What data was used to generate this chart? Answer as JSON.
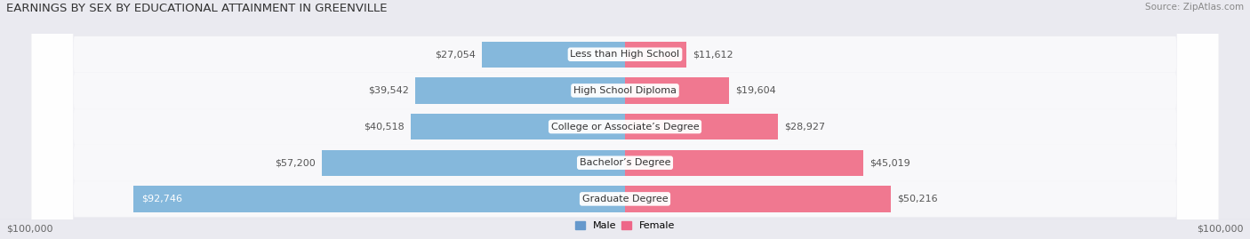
{
  "title": "EARNINGS BY SEX BY EDUCATIONAL ATTAINMENT IN GREENVILLE",
  "source": "Source: ZipAtlas.com",
  "categories": [
    "Less than High School",
    "High School Diploma",
    "College or Associate’s Degree",
    "Bachelor’s Degree",
    "Graduate Degree"
  ],
  "male_values": [
    27054,
    39542,
    40518,
    57200,
    92746
  ],
  "female_values": [
    11612,
    19604,
    28927,
    45019,
    50216
  ],
  "male_labels": [
    "$27,054",
    "$39,542",
    "$40,518",
    "$57,200",
    "$92,746"
  ],
  "female_labels": [
    "$11,612",
    "$19,604",
    "$28,927",
    "$45,019",
    "$50,216"
  ],
  "male_color": "#85b8dc",
  "female_color": "#f07890",
  "axis_max": 100000,
  "background_color": "#eaeaf0",
  "row_bg_light": "#f5f5f8",
  "row_bg_dark": "#e0e0ea",
  "label_fontsize": 8.0,
  "title_fontsize": 9.5,
  "category_fontsize": 8.0,
  "tick_label": "$100,000",
  "male_legend_color": "#6699cc",
  "female_legend_color": "#ee6688"
}
